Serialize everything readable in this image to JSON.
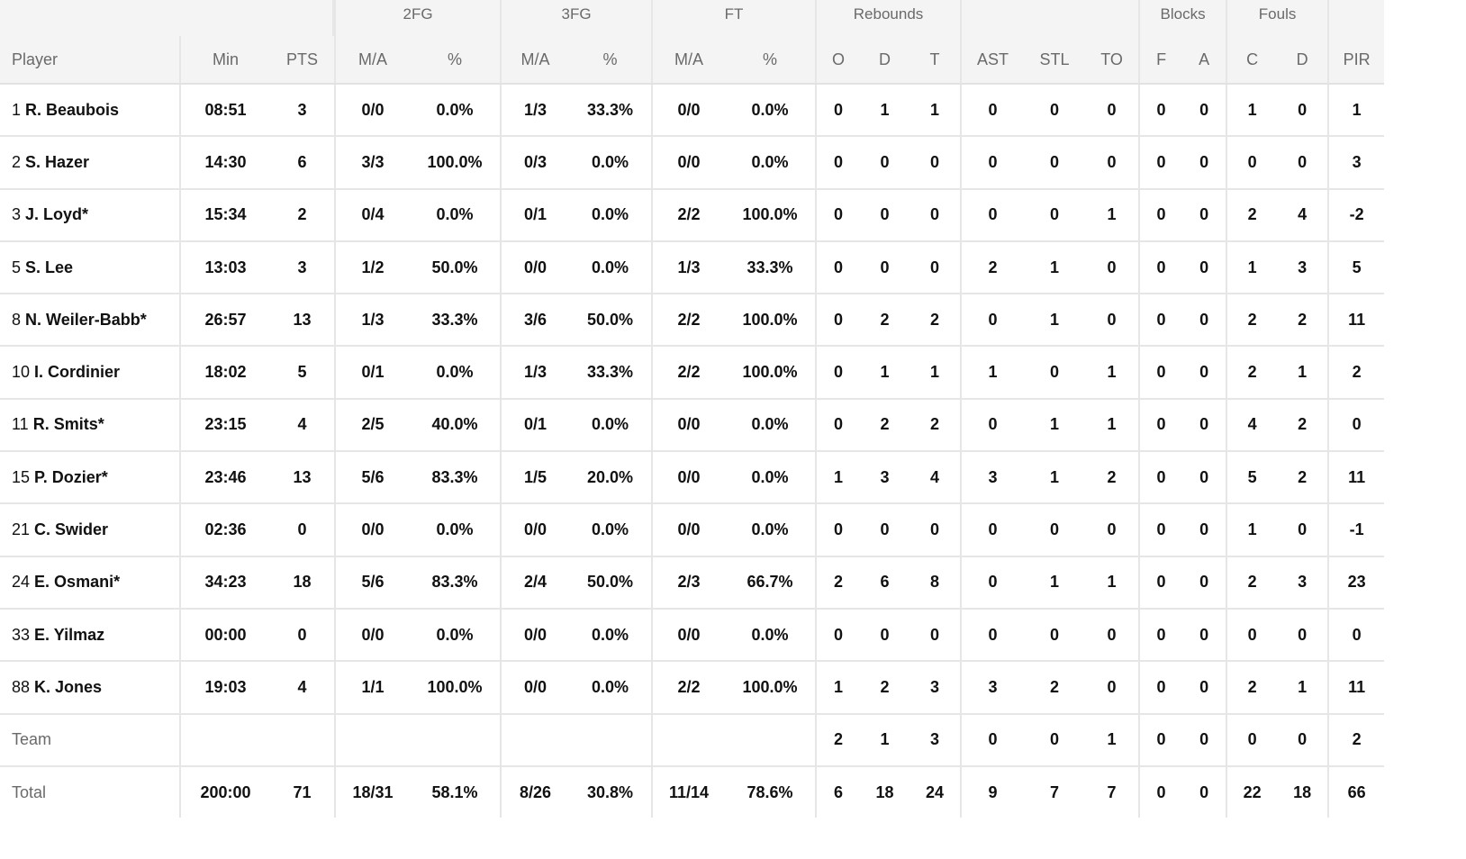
{
  "groups": {
    "fg2": "2FG",
    "fg3": "3FG",
    "ft": "FT",
    "reb": "Rebounds",
    "blk": "Blocks",
    "fouls": "Fouls"
  },
  "columns": [
    "Player",
    "Min",
    "PTS",
    "M/A",
    "%",
    "M/A",
    "%",
    "M/A",
    "%",
    "O",
    "D",
    "T",
    "AST",
    "STL",
    "TO",
    "F",
    "A",
    "C",
    "D",
    "PIR"
  ],
  "players": [
    {
      "num": "1",
      "name": "R. Beaubois",
      "stats": [
        "08:51",
        "3",
        "0/0",
        "0.0%",
        "1/3",
        "33.3%",
        "0/0",
        "0.0%",
        "0",
        "1",
        "1",
        "0",
        "0",
        "0",
        "0",
        "0",
        "1",
        "0",
        "1"
      ]
    },
    {
      "num": "2",
      "name": "S. Hazer",
      "stats": [
        "14:30",
        "6",
        "3/3",
        "100.0%",
        "0/3",
        "0.0%",
        "0/0",
        "0.0%",
        "0",
        "0",
        "0",
        "0",
        "0",
        "0",
        "0",
        "0",
        "0",
        "0",
        "3"
      ]
    },
    {
      "num": "3",
      "name": "J. Loyd*",
      "stats": [
        "15:34",
        "2",
        "0/4",
        "0.0%",
        "0/1",
        "0.0%",
        "2/2",
        "100.0%",
        "0",
        "0",
        "0",
        "0",
        "0",
        "1",
        "0",
        "0",
        "2",
        "4",
        "-2"
      ]
    },
    {
      "num": "5",
      "name": "S. Lee",
      "stats": [
        "13:03",
        "3",
        "1/2",
        "50.0%",
        "0/0",
        "0.0%",
        "1/3",
        "33.3%",
        "0",
        "0",
        "0",
        "2",
        "1",
        "0",
        "0",
        "0",
        "1",
        "3",
        "5"
      ]
    },
    {
      "num": "8",
      "name": "N. Weiler-Babb*",
      "stats": [
        "26:57",
        "13",
        "1/3",
        "33.3%",
        "3/6",
        "50.0%",
        "2/2",
        "100.0%",
        "0",
        "2",
        "2",
        "0",
        "1",
        "0",
        "0",
        "0",
        "2",
        "2",
        "11"
      ]
    },
    {
      "num": "10",
      "name": "I. Cordinier",
      "stats": [
        "18:02",
        "5",
        "0/1",
        "0.0%",
        "1/3",
        "33.3%",
        "2/2",
        "100.0%",
        "0",
        "1",
        "1",
        "1",
        "0",
        "1",
        "0",
        "0",
        "2",
        "1",
        "2"
      ]
    },
    {
      "num": "11",
      "name": "R. Smits*",
      "stats": [
        "23:15",
        "4",
        "2/5",
        "40.0%",
        "0/1",
        "0.0%",
        "0/0",
        "0.0%",
        "0",
        "2",
        "2",
        "0",
        "1",
        "1",
        "0",
        "0",
        "4",
        "2",
        "0"
      ]
    },
    {
      "num": "15",
      "name": "P. Dozier*",
      "stats": [
        "23:46",
        "13",
        "5/6",
        "83.3%",
        "1/5",
        "20.0%",
        "0/0",
        "0.0%",
        "1",
        "3",
        "4",
        "3",
        "1",
        "2",
        "0",
        "0",
        "5",
        "2",
        "11"
      ]
    },
    {
      "num": "21",
      "name": "C. Swider",
      "stats": [
        "02:36",
        "0",
        "0/0",
        "0.0%",
        "0/0",
        "0.0%",
        "0/0",
        "0.0%",
        "0",
        "0",
        "0",
        "0",
        "0",
        "0",
        "0",
        "0",
        "1",
        "0",
        "-1"
      ]
    },
    {
      "num": "24",
      "name": "E. Osmani*",
      "stats": [
        "34:23",
        "18",
        "5/6",
        "83.3%",
        "2/4",
        "50.0%",
        "2/3",
        "66.7%",
        "2",
        "6",
        "8",
        "0",
        "1",
        "1",
        "0",
        "0",
        "2",
        "3",
        "23"
      ]
    },
    {
      "num": "33",
      "name": "E. Yilmaz",
      "stats": [
        "00:00",
        "0",
        "0/0",
        "0.0%",
        "0/0",
        "0.0%",
        "0/0",
        "0.0%",
        "0",
        "0",
        "0",
        "0",
        "0",
        "0",
        "0",
        "0",
        "0",
        "0",
        "0"
      ]
    },
    {
      "num": "88",
      "name": "K. Jones",
      "stats": [
        "19:03",
        "4",
        "1/1",
        "100.0%",
        "0/0",
        "0.0%",
        "2/2",
        "100.0%",
        "1",
        "2",
        "3",
        "3",
        "2",
        "0",
        "0",
        "0",
        "2",
        "1",
        "11"
      ]
    }
  ],
  "team": {
    "label": "Team",
    "stats": [
      "",
      "",
      "",
      "",
      "",
      "",
      "",
      "",
      "2",
      "1",
      "3",
      "0",
      "0",
      "1",
      "0",
      "0",
      "0",
      "0",
      "2"
    ]
  },
  "total": {
    "label": "Total",
    "stats": [
      "200:00",
      "71",
      "18/31",
      "58.1%",
      "8/26",
      "30.8%",
      "11/14",
      "78.6%",
      "6",
      "18",
      "24",
      "9",
      "7",
      "7",
      "0",
      "0",
      "22",
      "18",
      "66"
    ]
  }
}
